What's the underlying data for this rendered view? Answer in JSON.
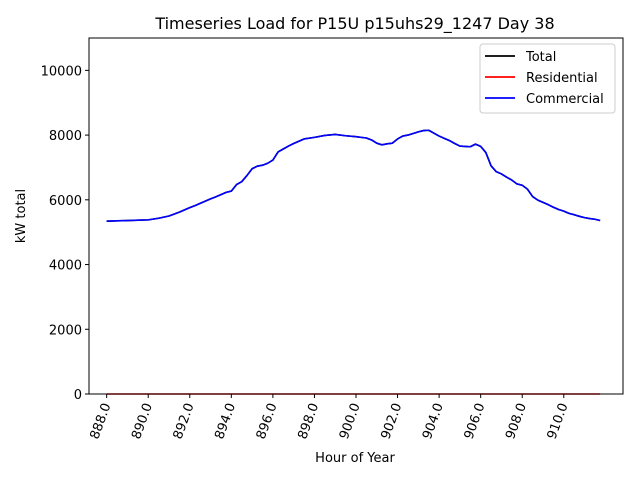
{
  "chart_data": {
    "type": "line",
    "title": "Timeseries Load for P15U p15uhs29_1247  Day 38",
    "xlabel": "Hour of Year",
    "ylabel": "kW total",
    "xlim": [
      887.15,
      912.85
    ],
    "ylim": [
      0,
      11000
    ],
    "xticks": [
      888,
      890,
      892,
      894,
      896,
      898,
      900,
      902,
      904,
      906,
      908,
      910
    ],
    "xtick_labels": [
      "888.0",
      "890.0",
      "892.0",
      "894.0",
      "896.0",
      "898.0",
      "900.0",
      "902.0",
      "904.0",
      "906.0",
      "908.0",
      "910.0"
    ],
    "yticks": [
      0,
      2000,
      4000,
      6000,
      8000,
      10000
    ],
    "ytick_labels": [
      "0",
      "2000",
      "4000",
      "6000",
      "8000",
      "10000"
    ],
    "grid": false,
    "legend_position": "top-right",
    "series": [
      {
        "name": "Total",
        "color": "#000000",
        "x": [
          888.0,
          888.5,
          889.0,
          889.5,
          890.0,
          890.5,
          891.0,
          891.5,
          892.0,
          892.25,
          892.5,
          893.0,
          893.25,
          893.5,
          893.75,
          894.0,
          894.25,
          894.5,
          894.75,
          895.0,
          895.25,
          895.5,
          895.75,
          896.0,
          896.25,
          896.5,
          896.75,
          897.0,
          897.25,
          897.5,
          898.0,
          898.5,
          899.0,
          899.5,
          900.0,
          900.25,
          900.5,
          900.75,
          901.0,
          901.25,
          901.5,
          901.75,
          902.0,
          902.25,
          902.5,
          902.75,
          903.0,
          903.25,
          903.5,
          903.75,
          904.0,
          904.25,
          904.5,
          904.75,
          905.0,
          905.25,
          905.5,
          905.75,
          906.0,
          906.25,
          906.5,
          906.75,
          907.0,
          907.25,
          907.5,
          907.75,
          908.0,
          908.25,
          908.5,
          908.75,
          909.0,
          909.25,
          909.5,
          909.75,
          910.0,
          910.25,
          910.5,
          910.75,
          911.0,
          911.25,
          911.5,
          911.75
        ],
        "values": [
          5340,
          5350,
          5360,
          5370,
          5380,
          5430,
          5500,
          5620,
          5760,
          5820,
          5890,
          6030,
          6090,
          6160,
          6230,
          6270,
          6470,
          6560,
          6750,
          6960,
          7040,
          7070,
          7130,
          7230,
          7480,
          7570,
          7660,
          7740,
          7810,
          7880,
          7930,
          7990,
          8020,
          7980,
          7950,
          7930,
          7910,
          7850,
          7750,
          7700,
          7730,
          7750,
          7880,
          7970,
          8000,
          8050,
          8100,
          8140,
          8150,
          8060,
          7970,
          7900,
          7830,
          7740,
          7660,
          7650,
          7640,
          7720,
          7650,
          7460,
          7050,
          6870,
          6800,
          6700,
          6610,
          6490,
          6450,
          6330,
          6100,
          5990,
          5920,
          5850,
          5770,
          5700,
          5650,
          5580,
          5540,
          5490,
          5450,
          5420,
          5400,
          5360
        ]
      },
      {
        "name": "Residential",
        "color": "#ff0000",
        "x": [
          888.0,
          911.75
        ],
        "values": [
          0,
          0
        ]
      },
      {
        "name": "Commercial",
        "color": "#0000ff",
        "x": [
          888.0,
          888.5,
          889.0,
          889.5,
          890.0,
          890.5,
          891.0,
          891.5,
          892.0,
          892.25,
          892.5,
          893.0,
          893.25,
          893.5,
          893.75,
          894.0,
          894.25,
          894.5,
          894.75,
          895.0,
          895.25,
          895.5,
          895.75,
          896.0,
          896.25,
          896.5,
          896.75,
          897.0,
          897.25,
          897.5,
          898.0,
          898.5,
          899.0,
          899.5,
          900.0,
          900.25,
          900.5,
          900.75,
          901.0,
          901.25,
          901.5,
          901.75,
          902.0,
          902.25,
          902.5,
          902.75,
          903.0,
          903.25,
          903.5,
          903.75,
          904.0,
          904.25,
          904.5,
          904.75,
          905.0,
          905.25,
          905.5,
          905.75,
          906.0,
          906.25,
          906.5,
          906.75,
          907.0,
          907.25,
          907.5,
          907.75,
          908.0,
          908.25,
          908.5,
          908.75,
          909.0,
          909.25,
          909.5,
          909.75,
          910.0,
          910.25,
          910.5,
          910.75,
          911.0,
          911.25,
          911.5,
          911.75
        ],
        "values": [
          5340,
          5350,
          5360,
          5370,
          5380,
          5430,
          5500,
          5620,
          5760,
          5820,
          5890,
          6030,
          6090,
          6160,
          6230,
          6270,
          6470,
          6560,
          6750,
          6960,
          7040,
          7070,
          7130,
          7230,
          7480,
          7570,
          7660,
          7740,
          7810,
          7880,
          7930,
          7990,
          8020,
          7980,
          7950,
          7930,
          7910,
          7850,
          7750,
          7700,
          7730,
          7750,
          7880,
          7970,
          8000,
          8050,
          8100,
          8140,
          8150,
          8060,
          7970,
          7900,
          7830,
          7740,
          7660,
          7650,
          7640,
          7720,
          7650,
          7460,
          7050,
          6870,
          6800,
          6700,
          6610,
          6490,
          6450,
          6330,
          6100,
          5990,
          5920,
          5850,
          5770,
          5700,
          5650,
          5580,
          5540,
          5490,
          5450,
          5420,
          5400,
          5360
        ]
      }
    ]
  }
}
